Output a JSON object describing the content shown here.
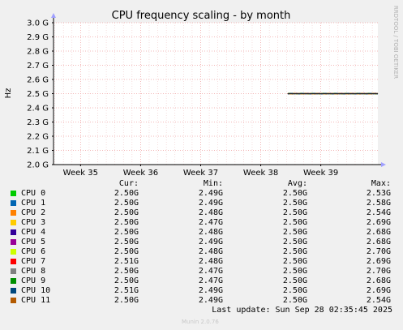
{
  "chart_data": {
    "type": "line",
    "title": "CPU frequency scaling - by month",
    "ylabel": "Hz",
    "watermark": "RRDTOOL / TOBI OETIKER",
    "ylim": [
      2.0,
      3.0
    ],
    "y_ticks": [
      "2.0 G",
      "2.1 G",
      "2.2 G",
      "2.3 G",
      "2.4 G",
      "2.5 G",
      "2.6 G",
      "2.7 G",
      "2.8 G",
      "2.9 G",
      "3.0 G"
    ],
    "y_tick_values": [
      2.0,
      2.1,
      2.2,
      2.3,
      2.4,
      2.5,
      2.6,
      2.7,
      2.8,
      2.9,
      3.0
    ],
    "x_ticks": [
      "Week 35",
      "Week 36",
      "Week 37",
      "Week 38",
      "Week 39"
    ],
    "x_tick_values": [
      35,
      36,
      37,
      38,
      39
    ],
    "xlim": [
      34.55,
      39.95
    ],
    "data_start": 38.45,
    "data_end": 39.95,
    "grid": true,
    "colors": {
      "background": "#f0f0f0",
      "plot_bg": "#ffffff",
      "minor_grid": "#f0c8c8",
      "major_grid": "#f0a0a0",
      "axis": "#000000"
    },
    "series": [
      {
        "name": "CPU 0",
        "color": "#00cc00",
        "cur": "2.50G",
        "min": "2.49G",
        "avg": "2.50G",
        "max": "2.53G",
        "avg_value": 2.5
      },
      {
        "name": "CPU 1",
        "color": "#0066b3",
        "cur": "2.50G",
        "min": "2.49G",
        "avg": "2.50G",
        "max": "2.58G",
        "avg_value": 2.5
      },
      {
        "name": "CPU 2",
        "color": "#ff8000",
        "cur": "2.50G",
        "min": "2.48G",
        "avg": "2.50G",
        "max": "2.54G",
        "avg_value": 2.5
      },
      {
        "name": "CPU 3",
        "color": "#ffcc00",
        "cur": "2.50G",
        "min": "2.47G",
        "avg": "2.50G",
        "max": "2.69G",
        "avg_value": 2.5
      },
      {
        "name": "CPU 4",
        "color": "#330099",
        "cur": "2.50G",
        "min": "2.48G",
        "avg": "2.50G",
        "max": "2.68G",
        "avg_value": 2.5
      },
      {
        "name": "CPU 5",
        "color": "#990099",
        "cur": "2.50G",
        "min": "2.49G",
        "avg": "2.50G",
        "max": "2.68G",
        "avg_value": 2.5
      },
      {
        "name": "CPU 6",
        "color": "#ccff00",
        "cur": "2.50G",
        "min": "2.48G",
        "avg": "2.50G",
        "max": "2.70G",
        "avg_value": 2.5
      },
      {
        "name": "CPU 7",
        "color": "#ff0000",
        "cur": "2.51G",
        "min": "2.48G",
        "avg": "2.50G",
        "max": "2.69G",
        "avg_value": 2.5
      },
      {
        "name": "CPU 8",
        "color": "#808080",
        "cur": "2.50G",
        "min": "2.47G",
        "avg": "2.50G",
        "max": "2.70G",
        "avg_value": 2.5
      },
      {
        "name": "CPU 9",
        "color": "#008f00",
        "cur": "2.50G",
        "min": "2.47G",
        "avg": "2.50G",
        "max": "2.68G",
        "avg_value": 2.5
      },
      {
        "name": "CPU 10",
        "color": "#00487d",
        "cur": "2.51G",
        "min": "2.49G",
        "avg": "2.50G",
        "max": "2.69G",
        "avg_value": 2.5
      },
      {
        "name": "CPU 11",
        "color": "#b35a00",
        "cur": "2.50G",
        "min": "2.49G",
        "avg": "2.50G",
        "max": "2.54G",
        "avg_value": 2.5
      }
    ]
  },
  "legend": {
    "headers": {
      "cur": "Cur:",
      "min": "Min:",
      "avg": "Avg:",
      "max": "Max:"
    }
  },
  "last_update": "Last update: Sun Sep 28 02:35:45 2025",
  "munin_version": "Munin 2.0.76"
}
